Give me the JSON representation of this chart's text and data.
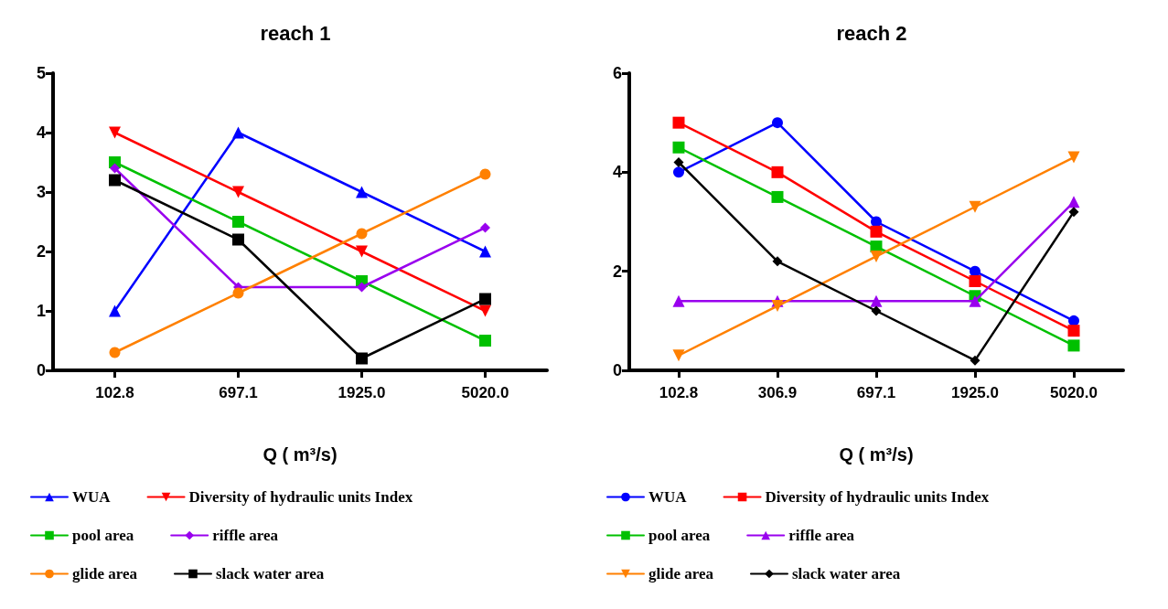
{
  "chart_data": [
    {
      "type": "line",
      "title": "reach 1",
      "xlabel": "Q ( m³/s)",
      "categories": [
        "102.8",
        "697.1",
        "1925.0",
        "5020.0"
      ],
      "ylim": [
        0,
        5
      ],
      "yticks": [
        0,
        1,
        2,
        3,
        4,
        5
      ],
      "grid": false,
      "legend": "bottom",
      "series": [
        {
          "name": "WUA",
          "color": "#0000ff",
          "marker": "triangle",
          "values": [
            1,
            4,
            3,
            2
          ]
        },
        {
          "name": "Diversity of hydraulic units Index",
          "color": "#ff0000",
          "marker": "triangle_down",
          "values": [
            4,
            3,
            2,
            1
          ]
        },
        {
          "name": "pool area",
          "color": "#00c000",
          "marker": "square",
          "values": [
            3.5,
            2.5,
            1.5,
            0.5
          ]
        },
        {
          "name": "riffle area",
          "color": "#9900ee",
          "marker": "diamond",
          "values": [
            3.4,
            1.4,
            1.4,
            2.4
          ]
        },
        {
          "name": "glide area",
          "color": "#ff8000",
          "marker": "circle",
          "values": [
            0.3,
            1.3,
            2.3,
            3.3
          ]
        },
        {
          "name": "slack water area",
          "color": "#000000",
          "marker": "square",
          "values": [
            3.2,
            2.2,
            0.2,
            1.2
          ]
        }
      ]
    },
    {
      "type": "line",
      "title": "reach 2",
      "xlabel": "Q ( m³/s)",
      "categories": [
        "102.8",
        "306.9",
        "697.1",
        "1925.0",
        "5020.0"
      ],
      "ylim": [
        0,
        6
      ],
      "yticks": [
        0,
        2,
        4,
        6
      ],
      "grid": false,
      "legend": "bottom",
      "series": [
        {
          "name": "WUA",
          "color": "#0000ff",
          "marker": "circle",
          "values": [
            4,
            5,
            3,
            2,
            1
          ]
        },
        {
          "name": "Diversity of hydraulic units Index",
          "color": "#ff0000",
          "marker": "square",
          "values": [
            5,
            4,
            2.8,
            1.8,
            0.8
          ]
        },
        {
          "name": "pool area",
          "color": "#00c000",
          "marker": "square",
          "values": [
            4.5,
            3.5,
            2.5,
            1.5,
            0.5
          ]
        },
        {
          "name": "riffle area",
          "color": "#9900ee",
          "marker": "triangle",
          "values": [
            1.4,
            1.4,
            1.4,
            1.4,
            3.4
          ]
        },
        {
          "name": "glide area",
          "color": "#ff8000",
          "marker": "triangle_down",
          "values": [
            0.3,
            1.3,
            2.3,
            3.3,
            4.3
          ]
        },
        {
          "name": "slack water area",
          "color": "#000000",
          "marker": "diamond",
          "values": [
            4.2,
            2.2,
            1.2,
            0.2,
            3.2
          ]
        }
      ]
    }
  ]
}
